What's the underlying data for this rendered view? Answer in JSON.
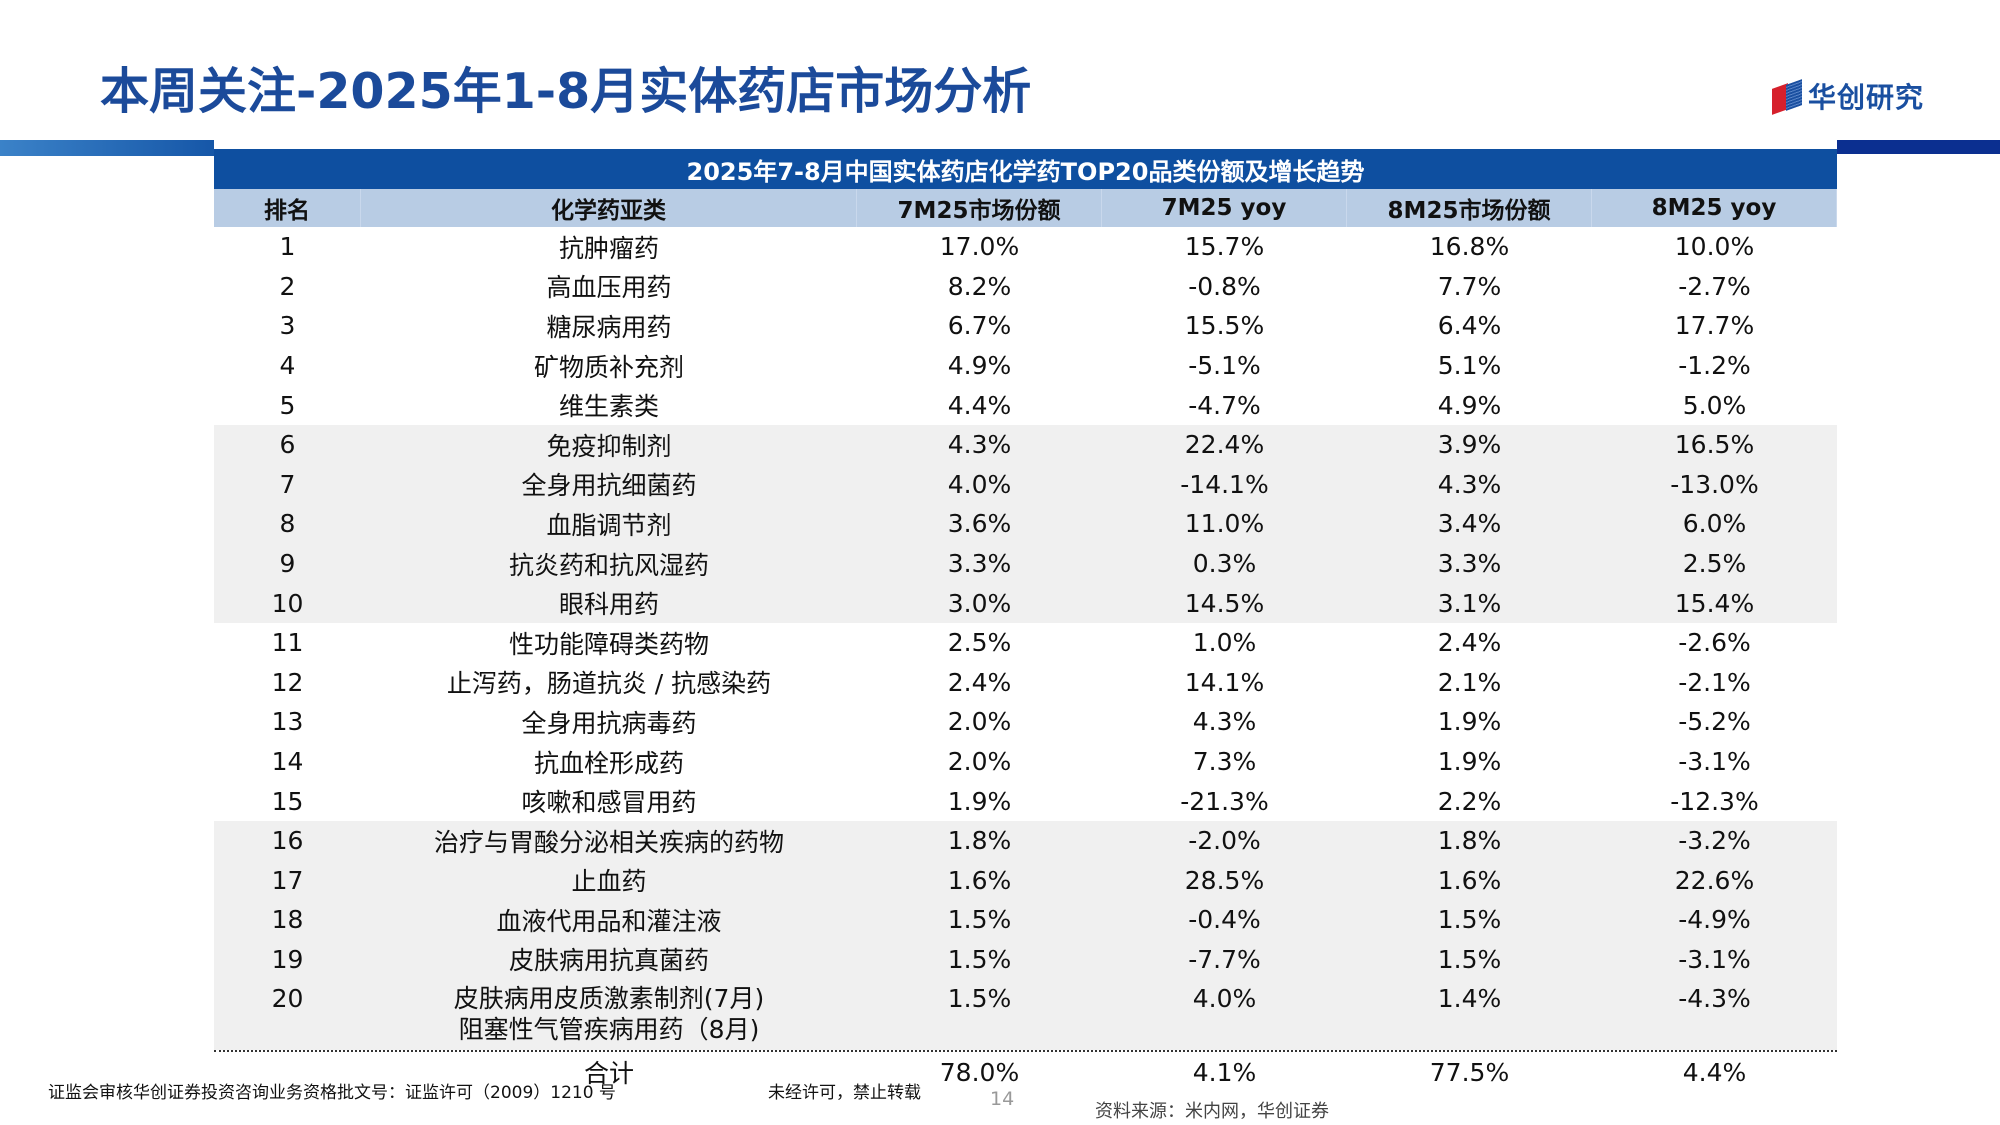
{
  "page": {
    "title": "本周关注-2025年1-8月实体药店市场分析",
    "logo_text": "华创研究",
    "footer_license": "证监会审核华创证券投资咨询业务资格批文号：证监许可（2009）1210 号",
    "footer_notice": "未经许可，禁止转载",
    "page_number": "14",
    "source": "资料来源：米内网，华创证券",
    "colors": {
      "title": "#1b4a9a",
      "table_title_bg": "#0e4fa0",
      "header_bg": "#b8cce4",
      "band_bg": "#f0f0f0"
    }
  },
  "table": {
    "caption": "2025年7-8月中国实体药店化学药TOP20品类份额及增长趋势",
    "headers": [
      "排名",
      "化学药亚类",
      "7M25市场份额",
      "7M25 yoy",
      "8M25市场份额",
      "8M25 yoy"
    ],
    "rows": [
      [
        "1",
        "抗肿瘤药",
        "17.0%",
        "15.7%",
        "16.8%",
        "10.0%"
      ],
      [
        "2",
        "高血压用药",
        "8.2%",
        "-0.8%",
        "7.7%",
        "-2.7%"
      ],
      [
        "3",
        "糖尿病用药",
        "6.7%",
        "15.5%",
        "6.4%",
        "17.7%"
      ],
      [
        "4",
        "矿物质补充剂",
        "4.9%",
        "-5.1%",
        "5.1%",
        "-1.2%"
      ],
      [
        "5",
        "维生素类",
        "4.4%",
        "-4.7%",
        "4.9%",
        "5.0%"
      ],
      [
        "6",
        "免疫抑制剂",
        "4.3%",
        "22.4%",
        "3.9%",
        "16.5%"
      ],
      [
        "7",
        "全身用抗细菌药",
        "4.0%",
        "-14.1%",
        "4.3%",
        "-13.0%"
      ],
      [
        "8",
        "血脂调节剂",
        "3.6%",
        "11.0%",
        "3.4%",
        "6.0%"
      ],
      [
        "9",
        "抗炎药和抗风湿药",
        "3.3%",
        "0.3%",
        "3.3%",
        "2.5%"
      ],
      [
        "10",
        "眼科用药",
        "3.0%",
        "14.5%",
        "3.1%",
        "15.4%"
      ],
      [
        "11",
        "性功能障碍类药物",
        "2.5%",
        "1.0%",
        "2.4%",
        "-2.6%"
      ],
      [
        "12",
        "止泻药，肠道抗炎 / 抗感染药",
        "2.4%",
        "14.1%",
        "2.1%",
        "-2.1%"
      ],
      [
        "13",
        "全身用抗病毒药",
        "2.0%",
        "4.3%",
        "1.9%",
        "-5.2%"
      ],
      [
        "14",
        "抗血栓形成药",
        "2.0%",
        "7.3%",
        "1.9%",
        "-3.1%"
      ],
      [
        "15",
        "咳嗽和感冒用药",
        "1.9%",
        "-21.3%",
        "2.2%",
        "-12.3%"
      ],
      [
        "16",
        "治疗与胃酸分泌相关疾病的药物",
        "1.8%",
        "-2.0%",
        "1.8%",
        "-3.2%"
      ],
      [
        "17",
        "止血药",
        "1.6%",
        "28.5%",
        "1.6%",
        "22.6%"
      ],
      [
        "18",
        "血液代用品和灌注液",
        "1.5%",
        "-0.4%",
        "1.5%",
        "-4.9%"
      ],
      [
        "19",
        "皮肤病用抗真菌药",
        "1.5%",
        "-7.7%",
        "1.5%",
        "-3.1%"
      ],
      [
        "20",
        "皮肤病用皮质激素制剂(7月)\n阻塞性气管疾病用药（8月)",
        "1.5%",
        "4.0%",
        "1.4%",
        "-4.3%"
      ]
    ],
    "total": [
      "",
      "合计",
      "78.0%",
      "4.1%",
      "77.5%",
      "4.4%"
    ]
  }
}
